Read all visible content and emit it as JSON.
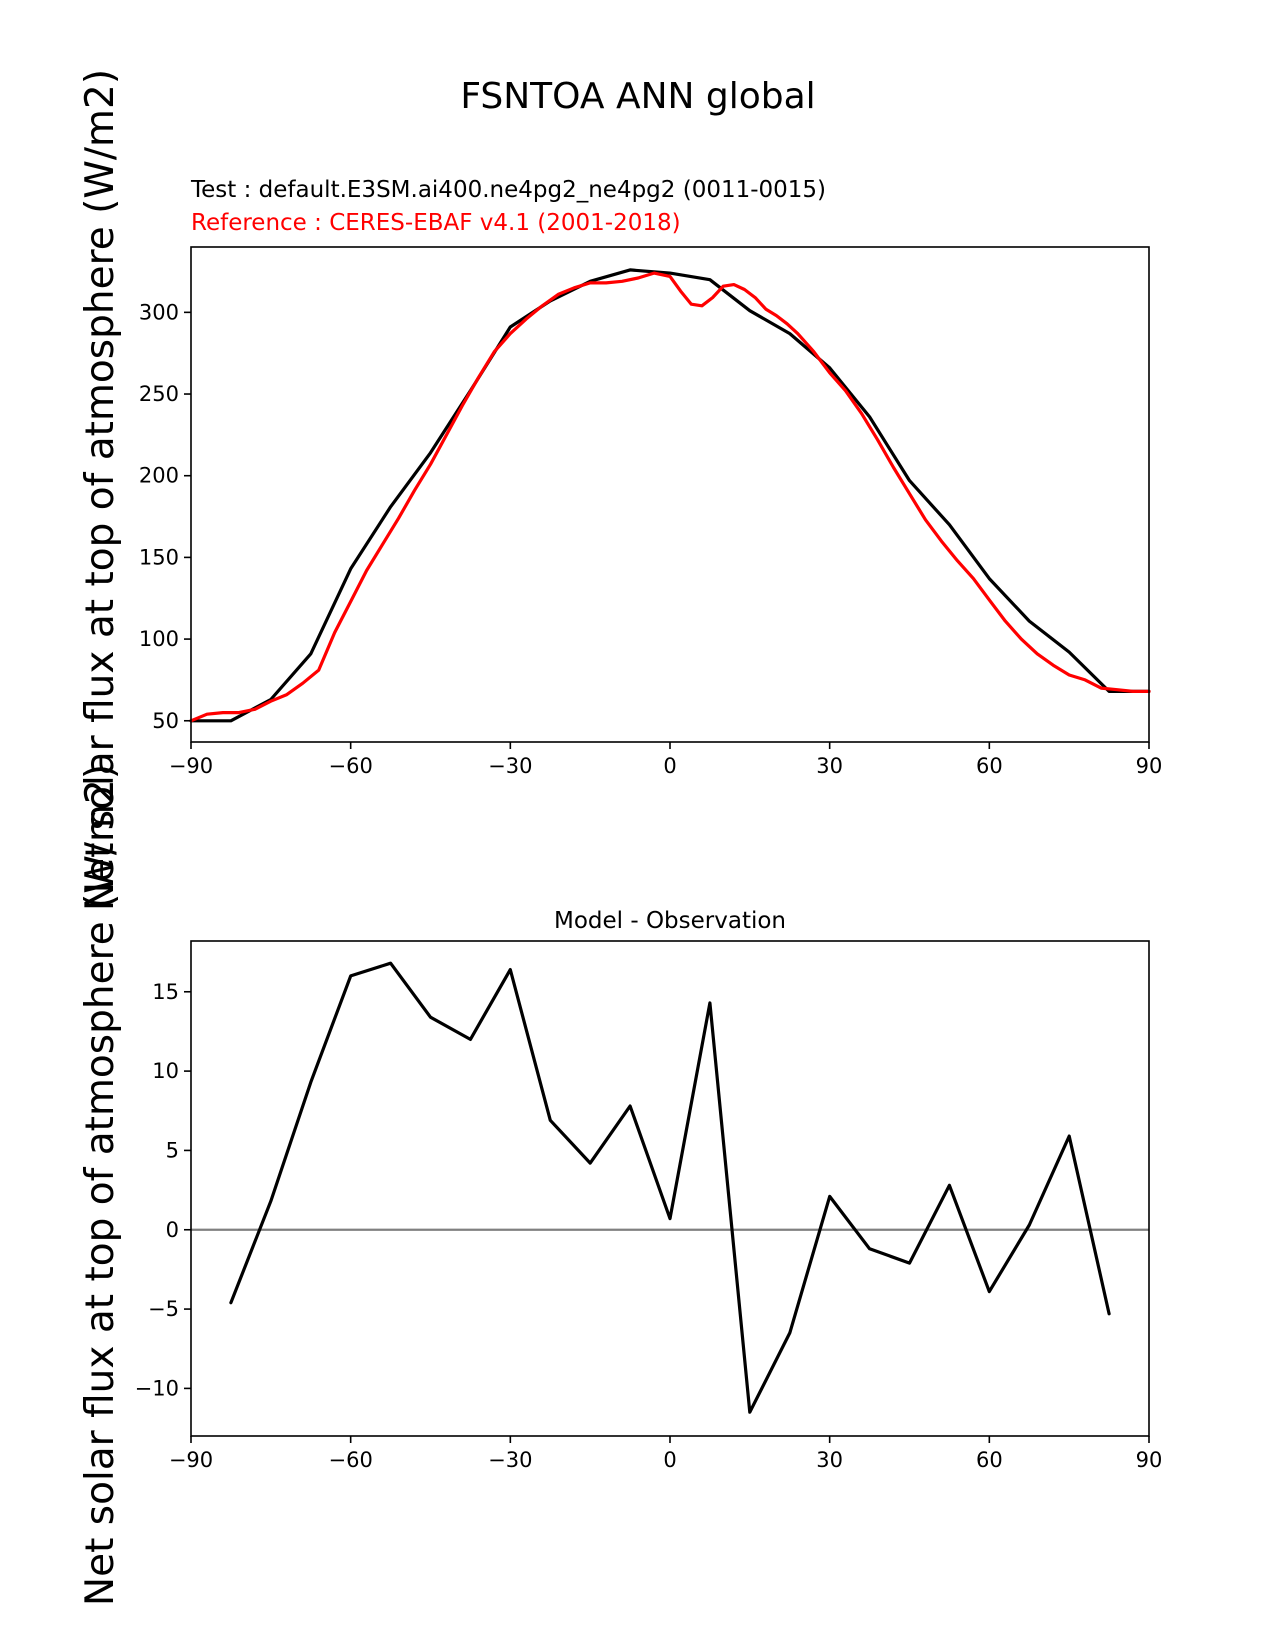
{
  "figure_title": "FSNTOA ANN global",
  "test_label": "Test : default.E3SM.ai400.ne4pg2_ne4pg2 (0011-0015)",
  "reference_label": "Reference : CERES-EBAF v4.1 (2001-2018)",
  "colors": {
    "test": "#000000",
    "reference": "#ff0000",
    "zero_line": "#808080",
    "reference_text": "#ff0000"
  },
  "chart_data": [
    {
      "type": "line",
      "title": "",
      "ylabel": "Net solar flux at top of atmosphere (W/m2)",
      "xlim": [
        -90,
        90
      ],
      "ylim": [
        37,
        340
      ],
      "xticks": [
        -90,
        -60,
        -30,
        0,
        30,
        60,
        90
      ],
      "xtick_labels": [
        "−90",
        "−60",
        "−30",
        "0",
        "30",
        "60",
        "90"
      ],
      "yticks": [
        50,
        100,
        150,
        200,
        250,
        300
      ],
      "ytick_labels": [
        "50",
        "100",
        "150",
        "200",
        "250",
        "300"
      ],
      "series": [
        {
          "name": "",
          "color": "#000000",
          "x": [
            -90,
            -82.5,
            -75,
            -67.5,
            -60,
            -52.5,
            -45,
            -37.5,
            -30,
            -22.5,
            -15,
            -7.5,
            0,
            7.5,
            15,
            22.5,
            30,
            37.5,
            45,
            52.5,
            60,
            67.5,
            75,
            82.5,
            90
          ],
          "y": [
            50,
            50,
            63,
            91,
            143,
            181,
            214,
            252,
            291,
            307,
            319,
            326,
            324,
            320,
            301,
            287,
            266,
            236,
            197,
            170,
            137,
            111,
            92,
            68,
            68
          ]
        },
        {
          "name": "",
          "color": "#ff0000",
          "x": [
            -90,
            -87,
            -84,
            -81,
            -78,
            -75,
            -72,
            -69,
            -66,
            -63,
            -60,
            -57,
            -54,
            -51,
            -48,
            -45,
            -42,
            -39,
            -36,
            -33,
            -30,
            -27,
            -24,
            -21,
            -18,
            -15,
            -12,
            -9,
            -6,
            -3,
            0,
            2,
            4,
            6,
            8,
            10,
            12,
            14,
            16,
            18,
            20,
            22,
            24,
            27,
            30,
            33,
            36,
            39,
            42,
            45,
            48,
            51,
            54,
            57,
            60,
            63,
            66,
            69,
            72,
            75,
            78,
            81,
            84,
            87,
            90
          ],
          "y": [
            50,
            54,
            55,
            55,
            57,
            62,
            66,
            73,
            81,
            104,
            123,
            142,
            158,
            174,
            191,
            207,
            225,
            243,
            260,
            276,
            287,
            296,
            304,
            311,
            315,
            318,
            318,
            319,
            321,
            324,
            322,
            313,
            305,
            304,
            309,
            316,
            317,
            314,
            309,
            302,
            298,
            293,
            287,
            276,
            263,
            252,
            238,
            222,
            205,
            189,
            173,
            160,
            148,
            137,
            124,
            111,
            100,
            91,
            84,
            78,
            75,
            70,
            69,
            68,
            68
          ]
        }
      ]
    },
    {
      "type": "line",
      "title": "Model - Observation",
      "ylabel": "Net solar flux at top of atmosphere (W/m2)",
      "xlim": [
        -90,
        90
      ],
      "ylim": [
        -13,
        18.2
      ],
      "xticks": [
        -90,
        -60,
        -30,
        0,
        30,
        60,
        90
      ],
      "xtick_labels": [
        "−90",
        "−60",
        "−30",
        "0",
        "30",
        "60",
        "90"
      ],
      "yticks": [
        -10,
        -5,
        0,
        5,
        10,
        15
      ],
      "ytick_labels": [
        "−10",
        "−5",
        "0",
        "5",
        "10",
        "15"
      ],
      "zero_line": 0,
      "series": [
        {
          "name": "",
          "color": "#000000",
          "x": [
            -82.5,
            -75,
            -67.5,
            -60,
            -52.5,
            -45,
            -37.5,
            -30,
            -22.5,
            -15,
            -7.5,
            0,
            7.5,
            15,
            22.5,
            30,
            37.5,
            45,
            52.5,
            60,
            67.5,
            75,
            82.5
          ],
          "y": [
            -4.6,
            1.8,
            9.3,
            16.0,
            16.8,
            13.4,
            12.0,
            16.4,
            6.9,
            4.2,
            7.8,
            0.7,
            14.3,
            -11.5,
            -6.5,
            2.1,
            -1.2,
            -2.1,
            2.8,
            -3.9,
            0.3,
            5.9,
            -5.3
          ]
        }
      ]
    }
  ]
}
